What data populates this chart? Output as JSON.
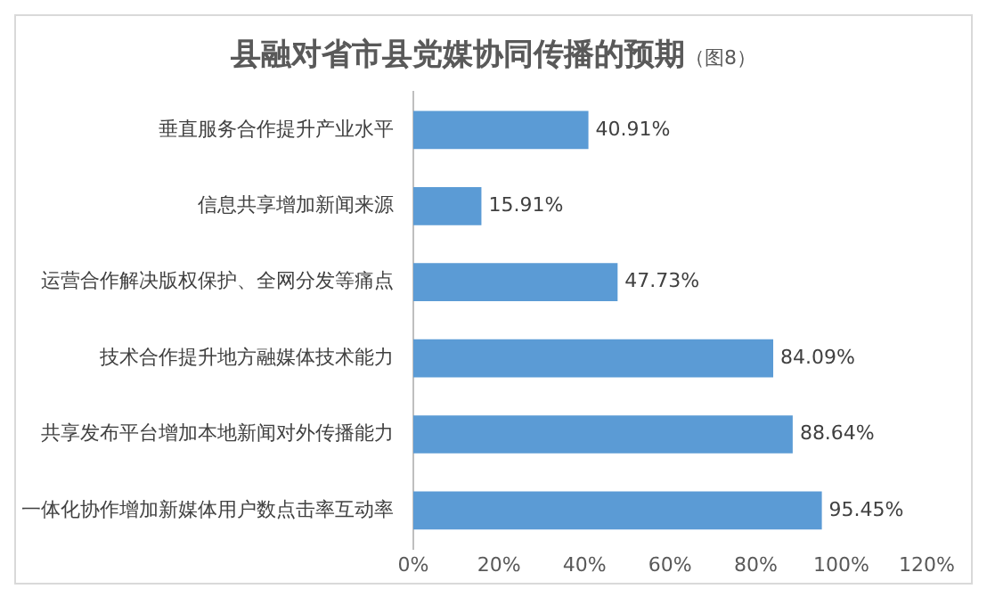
{
  "chart_data": {
    "type": "bar",
    "orientation": "horizontal",
    "title": "县融对省市县党媒协同传播的预期",
    "subtitle": "（图8）",
    "categories": [
      "垂直服务合作提升产业水平",
      "信息共享增加新闻来源",
      "运营合作解决版权保护、全网分发等痛点",
      "技术合作提升地方融媒体技术能力",
      "共享发布平台增加本地新闻对外传播能力",
      "一体化协作增加新媒体用户数点击率互动率"
    ],
    "values": [
      40.91,
      15.91,
      47.73,
      84.09,
      88.64,
      95.45
    ],
    "value_labels": [
      "40.91%",
      "15.91%",
      "47.73%",
      "84.09%",
      "88.64%",
      "95.45%"
    ],
    "color": "#5b9bd5",
    "xlim": [
      0,
      120
    ],
    "xticks": [
      {
        "value": 0,
        "label": "0%"
      },
      {
        "value": 20,
        "label": "20%"
      },
      {
        "value": 40,
        "label": "40%"
      },
      {
        "value": 60,
        "label": "60%"
      },
      {
        "value": 80,
        "label": "80%"
      },
      {
        "value": 100,
        "label": "100%"
      },
      {
        "value": 120,
        "label": "120%"
      }
    ],
    "grid": false,
    "legend": false
  }
}
